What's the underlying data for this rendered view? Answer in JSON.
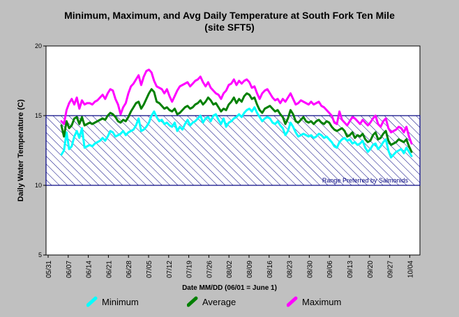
{
  "chart_data": {
    "type": "line",
    "title": "Minimum, Maximum, and Avg Daily Temperature at South Fork Ten Mile",
    "subtitle": "(site SFT5)",
    "xlabel": "Date MM/DD (06/01 = June 1)",
    "ylabel": "Daily Water Temperature (C)",
    "ylim": [
      5,
      20
    ],
    "yticks": [
      "5",
      "10",
      "15",
      "20"
    ],
    "xticks": [
      "05/31",
      "06/07",
      "06/14",
      "06/21",
      "06/28",
      "07/05",
      "07/12",
      "07/19",
      "07/26",
      "08/02",
      "08/09",
      "08/16",
      "08/23",
      "08/30",
      "09/06",
      "09/13",
      "09/20",
      "09/27",
      "10/04"
    ],
    "x_start": "05/31",
    "range_band": {
      "low": 10,
      "high": 15,
      "label": "Range Preferred by Salmonids"
    },
    "grid": false,
    "legend_position": "bottom",
    "series": [
      {
        "name": "Minimum",
        "color": "#00ffff",
        "values": [
          12.2,
          12.5,
          13.8,
          12.6,
          12.8,
          13.5,
          13.9,
          13.4,
          14.1,
          12.7,
          12.8,
          12.9,
          12.8,
          13.0,
          13.1,
          13.2,
          13.4,
          13.2,
          13.5,
          13.9,
          13.8,
          13.5,
          13.6,
          13.7,
          13.9,
          13.6,
          13.8,
          13.9,
          14.0,
          14.3,
          14.8,
          13.9,
          14.0,
          14.2,
          14.5,
          15.0,
          15.3,
          14.9,
          14.6,
          14.7,
          14.4,
          14.5,
          14.3,
          14.2,
          14.5,
          13.9,
          14.2,
          14.0,
          14.4,
          14.7,
          14.3,
          14.5,
          14.6,
          14.8,
          15.0,
          14.5,
          14.8,
          14.9,
          14.6,
          15.0,
          15.1,
          14.7,
          14.4,
          14.8,
          14.2,
          14.5,
          14.6,
          14.8,
          14.9,
          15.1,
          14.9,
          15.2,
          15.4,
          15.5,
          15.3,
          15.6,
          15.2,
          14.9,
          14.6,
          14.8,
          14.9,
          14.8,
          14.5,
          14.4,
          14.6,
          14.3,
          14.1,
          13.6,
          13.9,
          14.5,
          14.2,
          13.8,
          13.5,
          13.6,
          13.7,
          13.6,
          13.5,
          13.6,
          13.4,
          13.5,
          13.7,
          13.6,
          13.4,
          13.5,
          13.3,
          13.1,
          12.8,
          12.7,
          13.1,
          13.3,
          13.4,
          13.2,
          13.3,
          13.0,
          13.1,
          12.9,
          13.0,
          13.2,
          12.7,
          12.4,
          12.6,
          12.9,
          13.0,
          12.6,
          12.8,
          13.1,
          13.3,
          12.5,
          12.0,
          12.2,
          12.4,
          12.5,
          12.6,
          12.3,
          12.7,
          12.4,
          12.1
        ]
      },
      {
        "name": "Average",
        "color": "#008000",
        "values": [
          14.3,
          13.5,
          14.6,
          14.1,
          14.3,
          14.8,
          14.9,
          14.4,
          14.9,
          14.3,
          14.4,
          14.5,
          14.4,
          14.5,
          14.6,
          14.7,
          14.8,
          14.7,
          15.0,
          15.2,
          15.1,
          14.9,
          14.6,
          14.5,
          14.7,
          14.6,
          14.9,
          15.3,
          15.6,
          15.9,
          16.0,
          15.5,
          15.8,
          16.2,
          16.6,
          16.9,
          16.7,
          16.0,
          15.9,
          15.7,
          15.5,
          15.6,
          15.4,
          15.3,
          15.5,
          15.1,
          15.2,
          15.4,
          15.6,
          15.7,
          15.5,
          15.6,
          15.8,
          15.9,
          16.1,
          15.8,
          16.0,
          16.3,
          16.1,
          15.8,
          15.9,
          15.6,
          15.3,
          15.5,
          15.4,
          15.8,
          16.0,
          16.3,
          15.9,
          16.2,
          16.0,
          16.4,
          16.6,
          16.5,
          16.2,
          16.3,
          15.8,
          15.4,
          15.2,
          15.5,
          15.6,
          15.7,
          15.5,
          15.3,
          15.4,
          15.1,
          14.9,
          14.4,
          14.8,
          15.4,
          15.1,
          14.6,
          14.5,
          14.7,
          14.9,
          14.6,
          14.5,
          14.6,
          14.4,
          14.6,
          14.7,
          14.5,
          14.4,
          14.6,
          14.5,
          14.2,
          14.0,
          13.9,
          14.0,
          14.1,
          13.9,
          13.5,
          13.6,
          13.8,
          13.4,
          13.6,
          13.5,
          13.7,
          13.3,
          13.1,
          13.2,
          13.6,
          13.8,
          13.3,
          13.4,
          13.7,
          13.9,
          13.2,
          12.9,
          13.0,
          13.1,
          13.3,
          13.2,
          13.1,
          13.3,
          12.8,
          12.4
        ]
      },
      {
        "name": "Maximum",
        "color": "#ff00ff",
        "values": [
          14.6,
          14.4,
          15.4,
          15.9,
          16.2,
          15.8,
          16.3,
          15.5,
          16.1,
          15.8,
          15.9,
          15.9,
          15.8,
          16.0,
          16.1,
          16.3,
          16.5,
          16.2,
          16.6,
          16.9,
          16.8,
          16.2,
          15.8,
          15.1,
          15.6,
          15.9,
          16.6,
          17.1,
          17.3,
          17.6,
          17.9,
          17.2,
          17.8,
          18.2,
          18.3,
          18.1,
          17.5,
          17.1,
          17.0,
          16.9,
          16.6,
          16.9,
          16.4,
          16.0,
          16.4,
          16.8,
          17.1,
          17.2,
          17.3,
          17.4,
          17.1,
          17.3,
          17.5,
          17.6,
          17.8,
          17.4,
          17.1,
          17.4,
          17.0,
          16.8,
          16.6,
          16.5,
          16.2,
          16.6,
          16.8,
          17.2,
          17.3,
          17.6,
          17.2,
          17.5,
          17.3,
          17.5,
          17.6,
          17.4,
          17.0,
          17.1,
          16.6,
          16.2,
          16.6,
          16.8,
          16.9,
          16.6,
          16.3,
          16.1,
          16.2,
          15.9,
          16.2,
          16.0,
          16.3,
          16.6,
          16.2,
          15.8,
          15.9,
          16.1,
          16.0,
          15.9,
          15.8,
          16.0,
          15.8,
          15.9,
          16.0,
          15.7,
          15.6,
          15.4,
          15.2,
          15.0,
          14.5,
          14.4,
          15.3,
          14.7,
          14.5,
          14.3,
          14.6,
          14.9,
          14.8,
          14.6,
          14.4,
          14.7,
          14.5,
          14.3,
          14.5,
          14.8,
          15.0,
          14.4,
          14.2,
          14.6,
          14.8,
          14.1,
          13.8,
          13.9,
          14.0,
          14.2,
          14.1,
          13.8,
          14.2,
          13.5,
          13.0
        ]
      }
    ]
  }
}
